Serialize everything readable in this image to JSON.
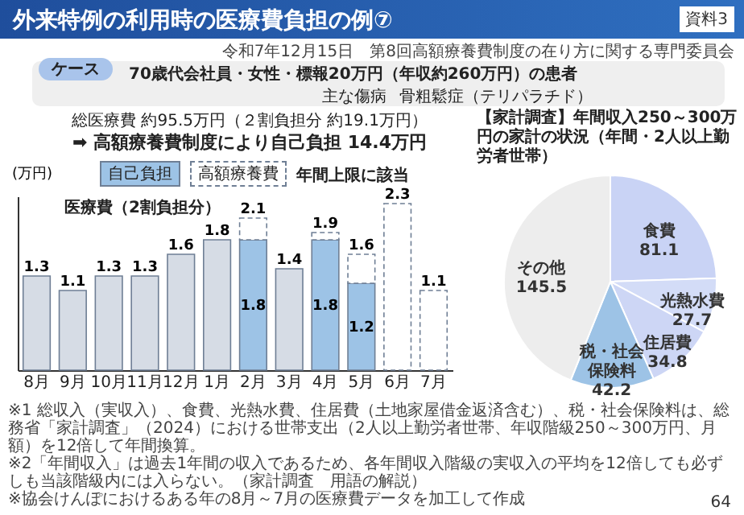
{
  "chart_data": [
    {
      "type": "other",
      "title": "外来特例の利用時の医療費負担の例⑦",
      "annotations": [
        "令和7年12月15日",
        "第8回高額療養費制度の在り方に関する専門委員会",
        "資料3",
        "ケース",
        "70歳代会社員・女性・標報20万円（年収約260万円）の患者",
        "主な傷病",
        "骨粗鬆症（テリパラチド）",
        "64"
      ]
    },
    {
      "type": "bar",
      "stacked": true,
      "ylabel": "(万円)",
      "legend": "top",
      "categories": [
        "8月",
        "9月",
        "10月",
        "11月",
        "12月",
        "1月",
        "2月",
        "3月",
        "4月",
        "5月",
        "6月",
        "7月"
      ],
      "series": [
        {
          "color": "#d6dce5",
          "values": [
            1.3,
            1.1,
            1.3,
            1.3,
            1.6,
            1.8,
            null,
            1.4,
            null,
            null,
            null,
            null
          ]
        },
        {
          "name": "自己負担",
          "color": "#9dc3e6",
          "values": [
            null,
            null,
            null,
            null,
            null,
            null,
            1.8,
            null,
            1.8,
            1.2,
            null,
            null
          ],
          "value_labels": [
            null,
            null,
            null,
            null,
            null,
            null,
            "1.8",
            null,
            "1.8",
            "1.2",
            null,
            null
          ]
        },
        {
          "name": "高額療養費",
          "color": "#ffffff",
          "line_style": "dashed",
          "values": [
            null,
            null,
            null,
            null,
            null,
            null,
            0.3,
            null,
            0.1,
            0.4,
            2.3,
            1.1
          ]
        }
      ],
      "totals": [
        "1.3",
        "1.1",
        "1.3",
        "1.3",
        "1.6",
        "1.8",
        "2.1",
        "1.4",
        "1.9",
        "1.6",
        "2.3",
        "1.1"
      ],
      "annotations": [
        "総医療費 約95.5万円（２割負担分 約19.1万円）",
        "➡ 高額療養費制度により自己負担 14.4万円",
        "医療費（2割負担分）",
        "年間上限に該当",
        "※協会けんぽにおけるある年の8月～7月の医療費データを加工して作成"
      ]
    },
    {
      "type": "pie",
      "title": "【家計調査】年間収入250～300万円の家計の状況（年間・2人以上勤労者世帯）",
      "data_labels": true,
      "categories": [
        "食費",
        "光熱水費",
        "住居費",
        "税・社会保険料",
        "その他"
      ],
      "values": [
        81.1,
        27.7,
        34.8,
        42.2,
        145.5
      ],
      "colors": [
        "#c9d3f5",
        "#d3dcf7",
        "#cdd6f5",
        "#9dc3e6",
        "#ededed"
      ],
      "annotations": [
        "※1 総収入（実収入）、食費、光熱水費、住居費（土地家屋借金返済含む）、税・社会保険料は、総務省「家計調査」（2024）における世帯支出（2人以上勤労者世帯、年収階級250～300万円、月額）を12倍して年間換算。",
        "※2「年間収入」は過去1年間の収入であるため、各年間収入階級の実収入の平均を12倍しても必ずしも当該階級内には入らない。（家計調査　用語の解説）"
      ]
    }
  ]
}
